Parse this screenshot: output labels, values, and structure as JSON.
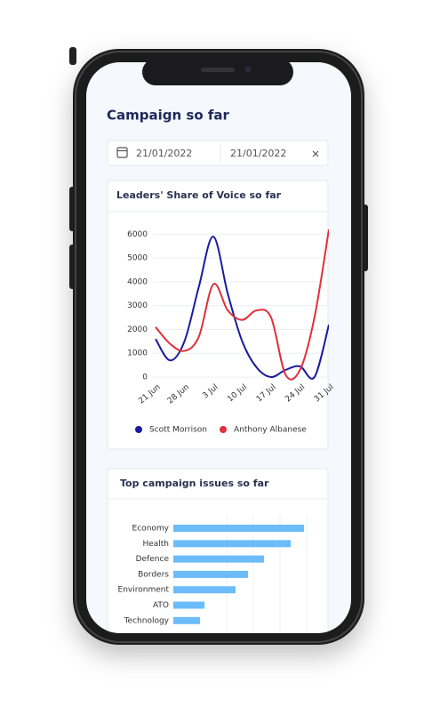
{
  "title": "Campaign so far",
  "date_range": {
    "from": "21/01/2022",
    "to": "21/01/2022"
  },
  "chart_data": [
    {
      "type": "line",
      "title": "Leaders' Share of Voice so far",
      "categories": [
        "21 Jun",
        null,
        "28 Jun",
        null,
        "3 Jul",
        null,
        "10 Jul",
        null,
        "17 Jul",
        null,
        "24 Jul",
        null,
        "31 Jul"
      ],
      "series": [
        {
          "name": "Scott Morrison",
          "color": "#1a1aa0",
          "values": [
            1600,
            700,
            1500,
            3800,
            5900,
            3500,
            1500,
            400,
            0,
            300,
            450,
            0,
            2200
          ]
        },
        {
          "name": "Anthony Albanese",
          "color": "#e0303a",
          "values": [
            2100,
            1400,
            1100,
            1700,
            3900,
            2800,
            2400,
            2800,
            2500,
            100,
            300,
            2500,
            6200
          ]
        }
      ],
      "ylim": [
        0,
        6500
      ],
      "yticks": [
        0,
        1000,
        2000,
        3000,
        4000,
        5000,
        6000
      ],
      "grid": true,
      "legend": "bottom"
    },
    {
      "type": "barh",
      "title": "Top campaign issues so far",
      "categories": [
        "Economy",
        "Health",
        "Defence",
        "Borders",
        "Environment",
        "ATO",
        "Technology"
      ],
      "values": [
        490,
        440,
        340,
        280,
        233,
        117,
        100
      ],
      "color": "#6cbcfa",
      "xlim": [
        0,
        583
      ]
    }
  ]
}
